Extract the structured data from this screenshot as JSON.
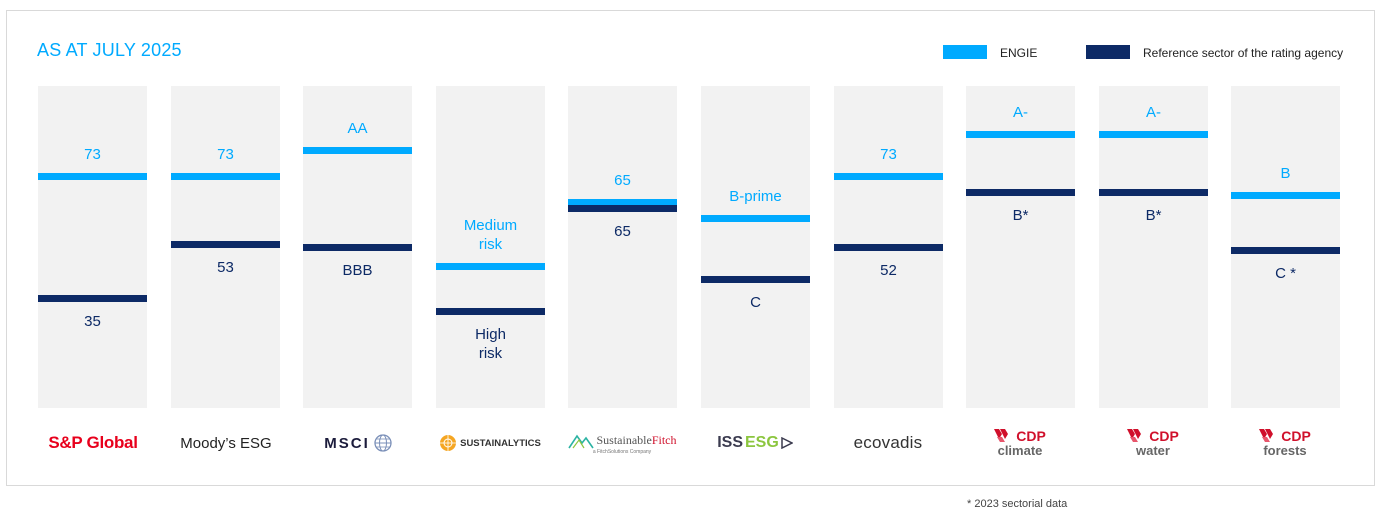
{
  "header": {
    "title": "AS AT JULY 2025"
  },
  "legend": [
    {
      "label": "ENGIE",
      "color": "#00aaff"
    },
    {
      "label": "Reference sector of the rating agency",
      "color": "#0d2a66"
    }
  ],
  "logos": {
    "sp": "S&P Global",
    "moodys": "Moody’s ESG",
    "msci": "MSCI",
    "sustainalytics": "SUSTAINALYTICS",
    "fitch_a": "Sustainable",
    "fitch_b": "Fitch",
    "fitch_sub": "a FitchSolutions Company",
    "iss_a": "ISS",
    "iss_b": "ESG",
    "ecovadis": "ecovadis",
    "cdp": "CDP",
    "cdp_climate": "climate",
    "cdp_water": "water",
    "cdp_forests": "forests"
  },
  "footnote": "* 2023 sectorial data",
  "chart_data": {
    "type": "bar",
    "categories": [
      "S&P Global",
      "Moody’s ESG",
      "MSCI",
      "Sustainalytics",
      "Sustainable Fitch",
      "ISS ESG",
      "ecovadis",
      "CDP climate",
      "CDP water",
      "CDP forests"
    ],
    "series": [
      {
        "name": "ENGIE",
        "labels": [
          "73",
          "73",
          "AA",
          "Medium\nrisk",
          "65",
          "B-prime",
          "73",
          "A-",
          "A-",
          "B"
        ],
        "levels": [
          0.27,
          0.27,
          0.19,
          0.55,
          0.35,
          0.4,
          0.27,
          0.14,
          0.14,
          0.33
        ]
      },
      {
        "name": "Reference sector of the rating agency",
        "labels": [
          "35",
          "53",
          "BBB",
          "High\nrisk",
          "65",
          "C",
          "52",
          "B*",
          "B*",
          "C *"
        ],
        "levels": [
          0.65,
          0.48,
          0.49,
          0.69,
          0.37,
          0.59,
          0.49,
          0.32,
          0.32,
          0.5
        ]
      }
    ]
  }
}
